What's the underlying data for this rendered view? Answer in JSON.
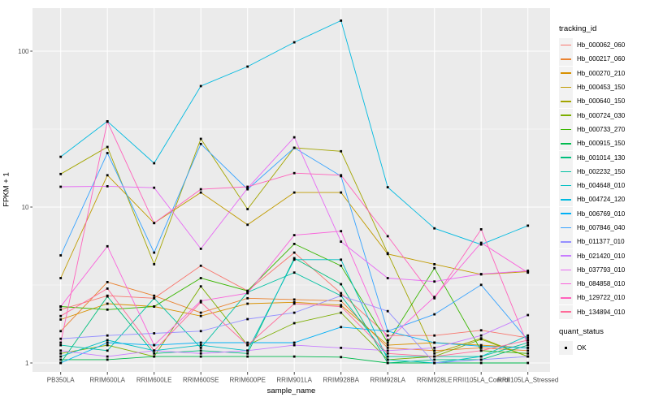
{
  "chart_data": {
    "type": "line",
    "title": "",
    "xlabel": "sample_name",
    "ylabel": "FPKM + 1",
    "y_scale": "log10",
    "y_ticks": [
      1,
      10,
      100
    ],
    "y_minor_ticks": [
      3.162,
      31.62
    ],
    "ylim": [
      0.88,
      190
    ],
    "grid": "on",
    "panel_bg": "#EBEBEB",
    "grid_color": "#FFFFFF",
    "tick_label_color": "#4D4D4D",
    "point_color": "#000000",
    "point_shape": "square",
    "legend_position": "right",
    "categories": [
      "PB350LA",
      "RRIM600LA",
      "RRIM600LE",
      "RRIM600SE",
      "RRIM600PE",
      "RRIM901LA",
      "RRIM928BA",
      "RRIM928LA",
      "RRIM928LE",
      "RRII105LA_Control",
      "RRII105LA_Stressed"
    ],
    "series": [
      {
        "name": "Hb_000062_060",
        "color": "#F8766D",
        "values": [
          2.2,
          2.7,
          2.6,
          4.2,
          2.9,
          5.1,
          2.8,
          1.5,
          1.5,
          1.62,
          1.45
        ]
      },
      {
        "name": "Hb_000217_060",
        "color": "#EA8331",
        "values": [
          1.6,
          3.3,
          2.7,
          2.1,
          2.6,
          2.55,
          2.5,
          1.25,
          1.2,
          1.25,
          1.2
        ]
      },
      {
        "name": "Hb_000270_210",
        "color": "#D89000",
        "values": [
          1.9,
          2.4,
          2.3,
          2.0,
          2.4,
          2.45,
          2.35,
          1.3,
          1.35,
          1.3,
          1.25
        ]
      },
      {
        "name": "Hb_000453_150",
        "color": "#C09B00",
        "values": [
          3.5,
          16.0,
          7.9,
          12.4,
          7.7,
          12.4,
          12.4,
          5.0,
          4.3,
          3.7,
          3.85
        ]
      },
      {
        "name": "Hb_000640_150",
        "color": "#A3A500",
        "values": [
          16.3,
          24.3,
          4.3,
          27.4,
          9.7,
          24.0,
          22.8,
          5.06,
          1.15,
          1.44,
          1.1
        ]
      },
      {
        "name": "Hb_000724_030",
        "color": "#7CAE00",
        "values": [
          1.15,
          1.3,
          1.1,
          3.1,
          1.3,
          1.8,
          2.1,
          1.05,
          1.1,
          1.42,
          1.1
        ]
      },
      {
        "name": "Hb_000733_270",
        "color": "#39B600",
        "values": [
          2.3,
          2.2,
          2.3,
          3.5,
          2.9,
          5.8,
          4.2,
          1.35,
          4.06,
          1.2,
          1.15
        ]
      },
      {
        "name": "Hb_000915_150",
        "color": "#00BB4E",
        "values": [
          1.05,
          1.05,
          1.1,
          1.1,
          1.1,
          1.1,
          1.09,
          1.0,
          1.0,
          1.0,
          1.0
        ]
      },
      {
        "name": "Hb_001014_130",
        "color": "#00BF7D",
        "values": [
          1.0,
          2.67,
          1.15,
          1.2,
          1.15,
          4.7,
          3.2,
          1.0,
          1.05,
          1.05,
          1.3
        ]
      },
      {
        "name": "Hb_002232_150",
        "color": "#00C1A3",
        "values": [
          1.3,
          1.2,
          2.6,
          1.25,
          2.84,
          3.8,
          2.7,
          1.1,
          1.1,
          1.1,
          1.35
        ]
      },
      {
        "name": "Hb_004648_010",
        "color": "#00BFC4",
        "values": [
          1.1,
          1.4,
          1.2,
          1.3,
          1.2,
          4.6,
          4.6,
          1.05,
          1.0,
          1.1,
          1.5
        ]
      },
      {
        "name": "Hb_004724_120",
        "color": "#00BAE0",
        "values": [
          21,
          35.5,
          19.1,
          59.7,
          79.6,
          114,
          157,
          13.4,
          7.3,
          5.75,
          7.6
        ]
      },
      {
        "name": "Hb_006769_010",
        "color": "#00B0F6",
        "values": [
          1.0,
          1.35,
          1.3,
          1.35,
          1.35,
          1.35,
          1.7,
          1.6,
          1.35,
          1.28,
          1.25
        ]
      },
      {
        "name": "Hb_007846_040",
        "color": "#35A2FF",
        "values": [
          4.9,
          22.2,
          5.1,
          25.4,
          13.0,
          24.0,
          15.8,
          1.6,
          2.05,
          3.17,
          1.4
        ]
      },
      {
        "name": "Hb_011377_010",
        "color": "#9590FF",
        "values": [
          1.43,
          1.5,
          1.55,
          1.6,
          1.91,
          2.1,
          2.7,
          2.15,
          1.0,
          1.05,
          1.1
        ]
      },
      {
        "name": "Hb_021420_010",
        "color": "#C77CFF",
        "values": [
          1.2,
          1.1,
          1.2,
          1.15,
          1.2,
          1.3,
          1.25,
          1.2,
          1.25,
          1.5,
          2.03
        ]
      },
      {
        "name": "Hb_037793_010",
        "color": "#E76BF3",
        "values": [
          13.5,
          13.6,
          13.3,
          5.4,
          13.2,
          28.0,
          6.0,
          3.5,
          3.33,
          3.72,
          3.9
        ]
      },
      {
        "name": "Hb_084858_010",
        "color": "#FA62DB",
        "values": [
          2.3,
          5.6,
          1.3,
          2.5,
          2.8,
          6.6,
          7.0,
          1.4,
          2.65,
          5.9,
          3.8
        ]
      },
      {
        "name": "Hb_129722_010",
        "color": "#FF62BC",
        "values": [
          1.35,
          35.3,
          7.9,
          13.0,
          13.5,
          16.5,
          16.0,
          6.5,
          2.6,
          7.2,
          1.3
        ]
      },
      {
        "name": "Hb_134894_010",
        "color": "#FF6A98",
        "values": [
          2.0,
          3.0,
          1.2,
          2.45,
          1.3,
          2.4,
          2.3,
          1.15,
          1.1,
          1.2,
          1.4
        ]
      }
    ],
    "legend": {
      "color_title": "tracking_id",
      "shape_title": "quant_status",
      "shape_items": [
        {
          "label": "OK"
        }
      ]
    }
  }
}
